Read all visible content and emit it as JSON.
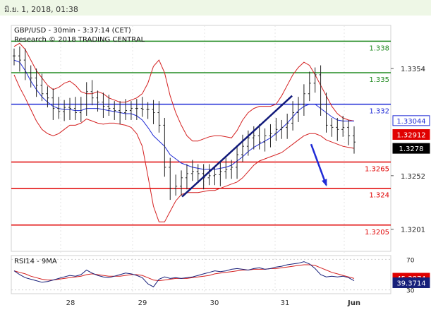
{
  "header": {
    "datetime": "มิ.ย. 1, 2018, 01:38"
  },
  "chart_data": [
    {
      "type": "line",
      "title": "GBP/USD - 30min - 3:37:14 (CET)",
      "subtitle": "Research © 2018 TRADING CENTRAL",
      "ylim": [
        1.318,
        1.3395
      ],
      "y_ticks": [
        {
          "value": 1.3354,
          "label": "1.3354"
        },
        {
          "value": 1.3252,
          "label": "1.3252"
        },
        {
          "value": 1.3201,
          "label": "1.3201"
        }
      ],
      "x_ticks": [
        "28",
        "29",
        "30",
        "31",
        "Jun"
      ],
      "levels": [
        {
          "value": 1.338,
          "label": "1.338",
          "color": "#228b22"
        },
        {
          "value": 1.335,
          "label": "1.335",
          "color": "#228b22"
        },
        {
          "value": 1.332,
          "label": "1.332",
          "color": "#1f2bd6"
        },
        {
          "value": 1.3265,
          "label": "1.3265",
          "color": "#e00000"
        },
        {
          "value": 1.324,
          "label": "1.324",
          "color": "#e00000"
        },
        {
          "value": 1.3205,
          "label": "1.3205",
          "color": "#e00000"
        }
      ],
      "price_tags": [
        {
          "value": 1.33044,
          "label": "1.33044",
          "bg": "#ffffff",
          "fg": "#1f2bd6"
        },
        {
          "value": 1.32912,
          "label": "1.32912",
          "bg": "#e00000",
          "fg": "#ffffff"
        },
        {
          "value": 1.3278,
          "label": "1.3278",
          "bg": "#000000",
          "fg": "#ffffff"
        }
      ],
      "series": [
        {
          "values": [
            1.3366,
            1.3362,
            1.335,
            1.3345,
            1.3338,
            1.333,
            1.3326,
            1.3316,
            1.3313,
            1.3317,
            1.3316,
            1.3312,
            1.332,
            1.3332,
            1.3326,
            1.3322,
            1.3318,
            1.3316,
            1.3314,
            1.3312,
            1.3314,
            1.3316,
            1.3316,
            1.3315,
            1.3315,
            1.3312,
            1.33,
            1.326,
            1.324,
            1.3242,
            1.325,
            1.3254,
            1.3256,
            1.3254,
            1.325,
            1.3252,
            1.3253,
            1.3256,
            1.3258,
            1.326,
            1.3272,
            1.328,
            1.3288,
            1.329,
            1.3284,
            1.329,
            1.3292,
            1.3296,
            1.3298,
            1.3302,
            1.3312,
            1.332,
            1.333,
            1.334,
            1.3348,
            1.332,
            1.33,
            1.3298,
            1.3296,
            1.3298,
            1.329,
            1.3284
          ]
        },
        {
          "name": "Bollinger upper",
          "values": [
            1.3375,
            1.3378,
            1.3372,
            1.3362,
            1.3352,
            1.3345,
            1.3338,
            1.3334,
            1.3336,
            1.334,
            1.3342,
            1.3338,
            1.3332,
            1.333,
            1.333,
            1.3332,
            1.333,
            1.3326,
            1.3324,
            1.3322,
            1.3322,
            1.3324,
            1.3326,
            1.333,
            1.334,
            1.3356,
            1.3362,
            1.335,
            1.3328,
            1.3312,
            1.33,
            1.329,
            1.3285,
            1.3285,
            1.3287,
            1.3289,
            1.329,
            1.329,
            1.3289,
            1.3288,
            1.3295,
            1.3305,
            1.3312,
            1.3316,
            1.3318,
            1.3318,
            1.3318,
            1.332,
            1.3328,
            1.3338,
            1.3348,
            1.3355,
            1.336,
            1.3357,
            1.3348,
            1.3338,
            1.3328,
            1.3318,
            1.3311,
            1.3307,
            1.3305,
            1.3304
          ]
        },
        {
          "name": "Bollinger lower",
          "values": [
            1.3348,
            1.3336,
            1.3326,
            1.3315,
            1.3304,
            1.3296,
            1.3292,
            1.329,
            1.3292,
            1.3296,
            1.33,
            1.33,
            1.3302,
            1.3306,
            1.3304,
            1.3302,
            1.3301,
            1.3302,
            1.3302,
            1.3301,
            1.33,
            1.3298,
            1.3292,
            1.328,
            1.3252,
            1.3223,
            1.3208,
            1.3208,
            1.3218,
            1.3228,
            1.3234,
            1.3236,
            1.3236,
            1.3236,
            1.3237,
            1.3238,
            1.3238,
            1.324,
            1.3242,
            1.3244,
            1.3246,
            1.325,
            1.3256,
            1.3262,
            1.3266,
            1.3268,
            1.327,
            1.3272,
            1.3274,
            1.3278,
            1.3282,
            1.3286,
            1.329,
            1.3292,
            1.3292,
            1.329,
            1.3286,
            1.3284,
            1.3282,
            1.328,
            1.3279,
            1.3278
          ]
        },
        {
          "name": "Moving average",
          "values": [
            1.3362,
            1.336,
            1.3352,
            1.3342,
            1.3334,
            1.3327,
            1.3322,
            1.3318,
            1.3316,
            1.3315,
            1.3315,
            1.3314,
            1.3314,
            1.3316,
            1.3316,
            1.3316,
            1.3315,
            1.3314,
            1.3313,
            1.3312,
            1.3311,
            1.3311,
            1.3309,
            1.3305,
            1.3298,
            1.329,
            1.3285,
            1.328,
            1.3272,
            1.3268,
            1.3264,
            1.3262,
            1.326,
            1.3259,
            1.3258,
            1.3258,
            1.3258,
            1.3259,
            1.326,
            1.3262,
            1.3266,
            1.327,
            1.3275,
            1.3279,
            1.3282,
            1.3285,
            1.3288,
            1.3292,
            1.3297,
            1.3302,
            1.3308,
            1.3314,
            1.3318,
            1.332,
            1.332,
            1.3316,
            1.3312,
            1.3308,
            1.3305,
            1.3304,
            1.3304,
            1.3304
          ]
        }
      ],
      "trendlines": [
        {
          "from": [
            0.45,
            1.3232
          ],
          "to": [
            0.74,
            1.3328
          ],
          "color": "#111a7a"
        },
        {
          "from": [
            0.79,
            1.3282
          ],
          "to": [
            0.83,
            1.3243
          ],
          "color": "#1f2bd6",
          "arrow": true
        }
      ]
    },
    {
      "type": "line",
      "title": "RSI14 - 9MA",
      "ylim": [
        25,
        75
      ],
      "y_ticks": [
        {
          "value": 70,
          "label": "70"
        },
        {
          "value": 30,
          "label": "30"
        }
      ],
      "price_tags": [
        {
          "value": 45.3874,
          "label": "45.3874",
          "bg": "#e00000",
          "fg": "#ffffff"
        },
        {
          "value": 39.3714,
          "label": "39.3714",
          "bg": "#17207a",
          "fg": "#ffffff"
        }
      ],
      "series": [
        {
          "name": "RSI",
          "values": [
            55,
            50,
            46,
            44,
            42,
            40,
            41,
            43,
            45,
            47,
            49,
            48,
            50,
            56,
            52,
            49,
            47,
            46,
            48,
            50,
            52,
            51,
            49,
            46,
            38,
            34,
            44,
            47,
            45,
            46,
            45,
            46,
            47,
            49,
            51,
            53,
            55,
            54,
            55,
            57,
            58,
            57,
            56,
            58,
            59,
            57,
            58,
            60,
            61,
            63,
            64,
            65,
            67,
            64,
            58,
            50,
            47,
            48,
            47,
            48,
            46,
            42
          ]
        },
        {
          "name": "9MA",
          "values": [
            55,
            53,
            51,
            48,
            46,
            44,
            43,
            43,
            44,
            45,
            46,
            47,
            48,
            50,
            51,
            50,
            49,
            48,
            48,
            48,
            49,
            50,
            50,
            49,
            46,
            43,
            42,
            43,
            44,
            45,
            45,
            45,
            46,
            47,
            48,
            49,
            51,
            52,
            53,
            54,
            55,
            56,
            56,
            57,
            57,
            57,
            58,
            58,
            59,
            60,
            61,
            62,
            63,
            63,
            62,
            59,
            56,
            53,
            51,
            49,
            47,
            45
          ]
        }
      ]
    }
  ]
}
